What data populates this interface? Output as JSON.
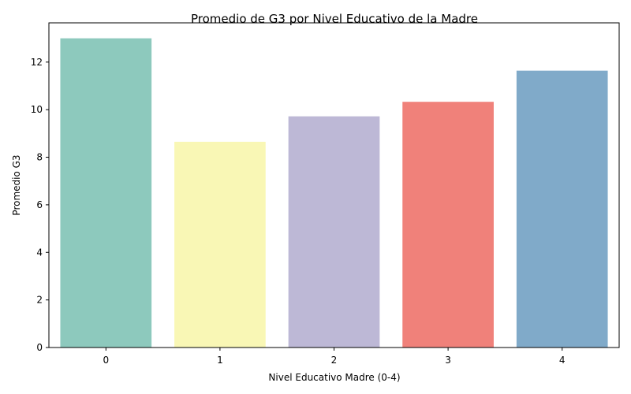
{
  "chart_data": {
    "type": "bar",
    "title": "Promedio de G3 por Nivel Educativo de la Madre",
    "xlabel": "Nivel Educativo Madre (0-4)",
    "ylabel": "Promedio G3",
    "categories": [
      "0",
      "1",
      "2",
      "3",
      "4"
    ],
    "values": [
      13.0,
      8.65,
      9.72,
      10.33,
      11.64
    ],
    "colors": [
      "#8dc9bd",
      "#f9f7b5",
      "#bdb8d6",
      "#f0817a",
      "#80aac9"
    ],
    "ylim": [
      0,
      13.65
    ],
    "yticks": [
      0,
      2,
      4,
      6,
      8,
      10,
      12
    ],
    "grid": false,
    "legend": "none"
  }
}
